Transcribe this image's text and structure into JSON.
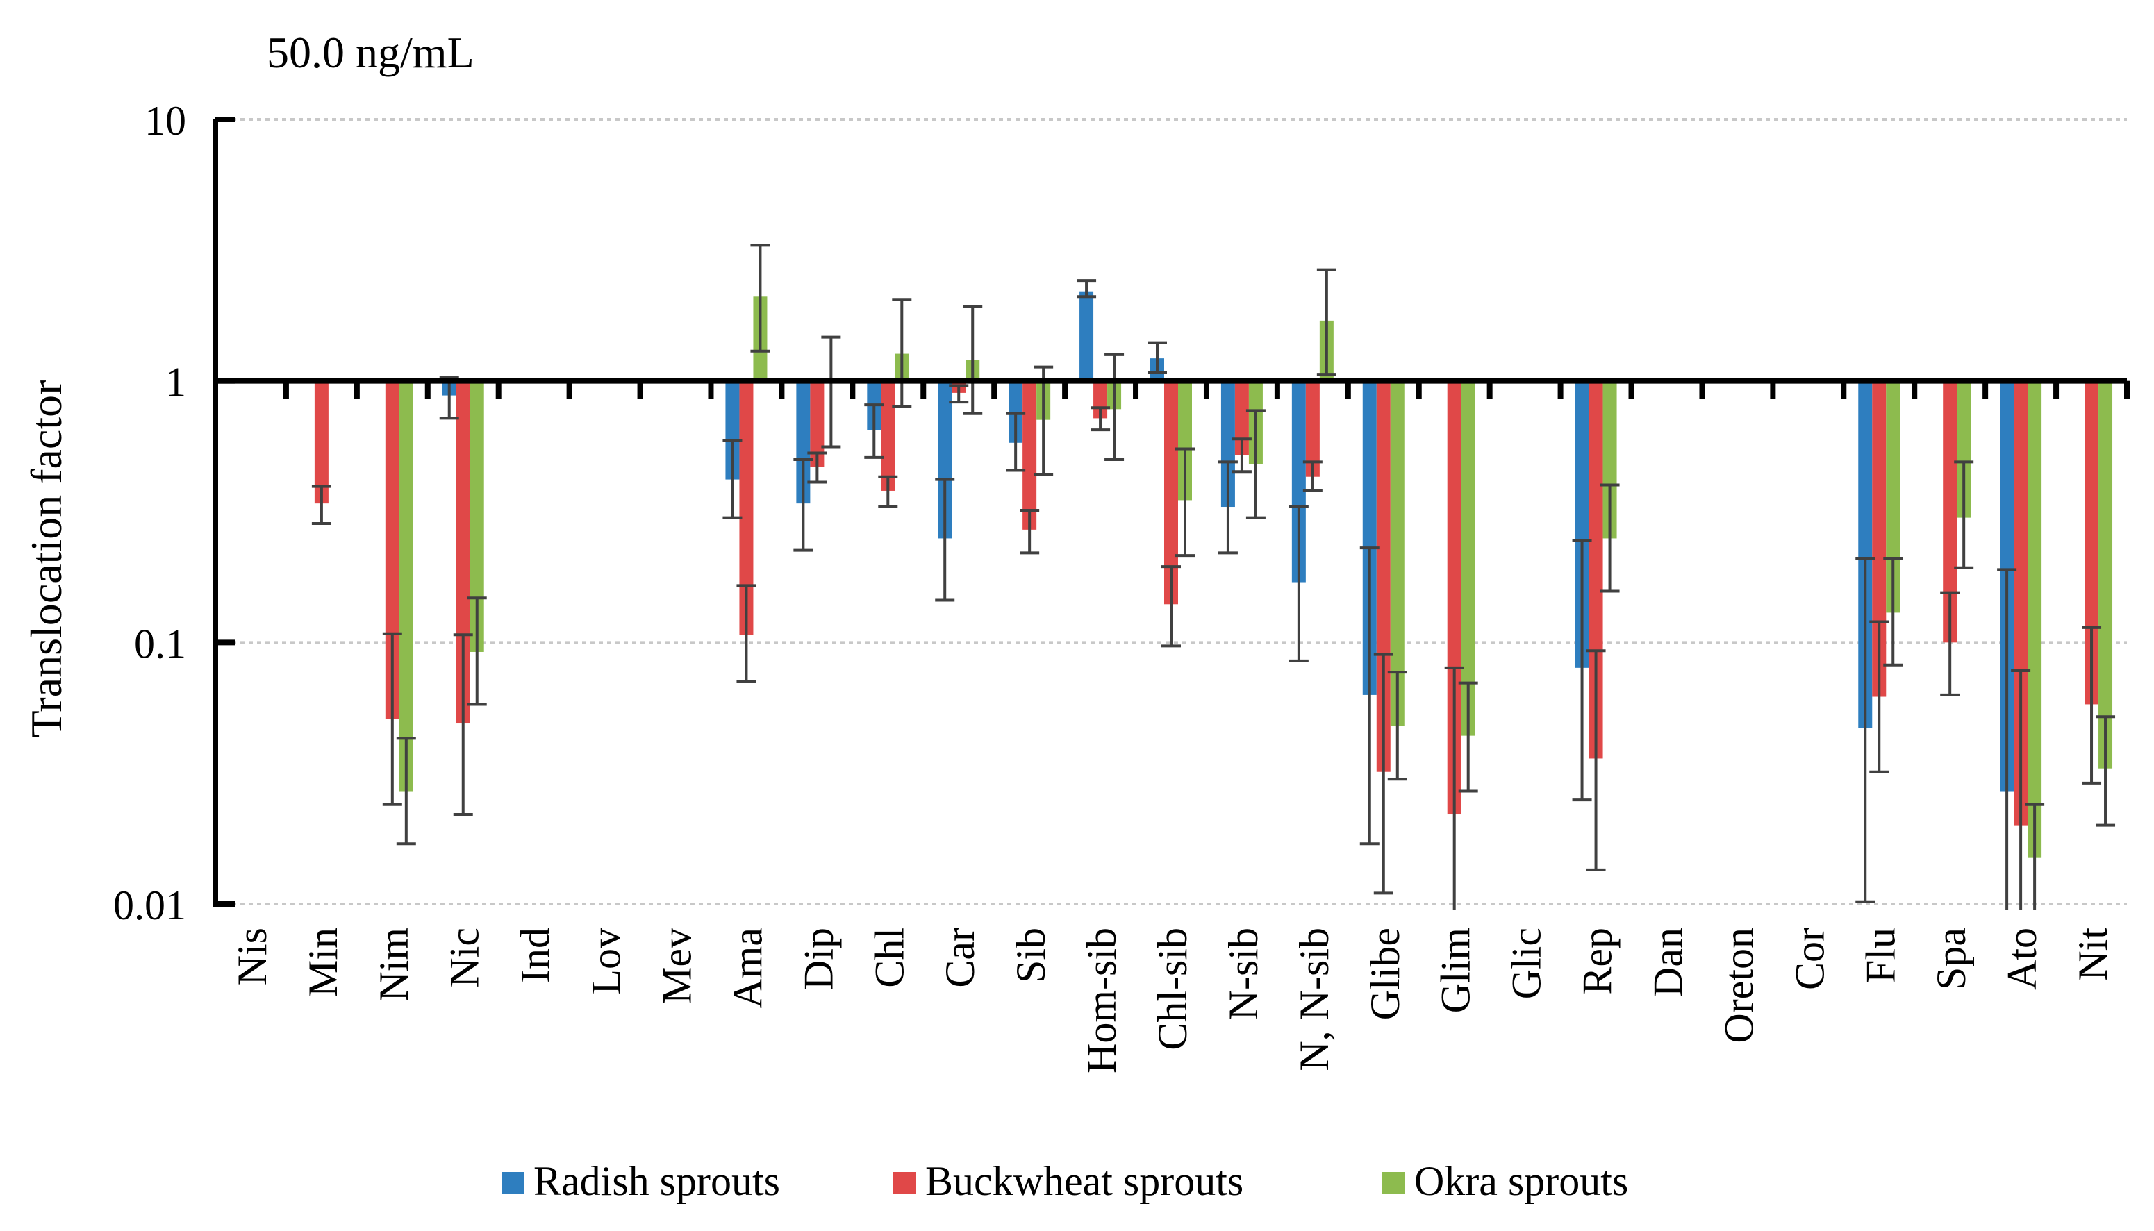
{
  "chart_data": {
    "type": "bar",
    "title": "50.0 ng/mL",
    "ylabel": "Translocation factor",
    "xlabel": "",
    "yscale": "log",
    "ylim": [
      0.01,
      10
    ],
    "baseline": 1,
    "yticks": [
      "10",
      "1",
      "0.1",
      "0.01"
    ],
    "grid": true,
    "legend_position": "bottom",
    "categories": [
      "Nis",
      "Min",
      "Nim",
      "Nic",
      "Ind",
      "Lov",
      "Mev",
      "Ama",
      "Dip",
      "Chl",
      "Car",
      "Sib",
      "Hom-sib",
      "Chl-sib",
      "N-sib",
      "N, N-sib",
      "Glibe",
      "Glim",
      "Glic",
      "Rep",
      "Dan",
      "Oreton",
      "Cor",
      "Flu",
      "Spa",
      "Ato",
      "Nit"
    ],
    "series": [
      {
        "name": "Radish sprouts",
        "color": "#2e7ebf",
        "values": [
          null,
          null,
          null,
          0.88,
          null,
          null,
          null,
          0.42,
          0.34,
          0.65,
          0.25,
          0.58,
          2.2,
          1.22,
          0.33,
          0.17,
          0.063,
          null,
          null,
          0.08,
          null,
          null,
          null,
          0.047,
          null,
          0.027,
          null
        ],
        "err_low": [
          null,
          null,
          null,
          0.72,
          null,
          null,
          null,
          0.3,
          0.225,
          0.51,
          0.145,
          0.455,
          2.1,
          1.08,
          0.22,
          0.085,
          0.017,
          null,
          null,
          0.025,
          null,
          null,
          null,
          0.0102,
          null,
          0.0095,
          null
        ],
        "err_high": [
          null,
          null,
          null,
          1.03,
          null,
          null,
          null,
          0.59,
          0.5,
          0.81,
          0.42,
          0.75,
          2.42,
          1.4,
          0.49,
          0.33,
          0.23,
          null,
          null,
          0.245,
          null,
          null,
          null,
          0.21,
          null,
          0.19,
          null
        ]
      },
      {
        "name": "Buckwheat sprouts",
        "color": "#e04848",
        "values": [
          null,
          0.34,
          0.051,
          0.049,
          null,
          null,
          null,
          0.107,
          0.47,
          0.38,
          0.9,
          0.27,
          0.72,
          0.14,
          0.52,
          0.43,
          0.032,
          0.022,
          null,
          0.036,
          null,
          null,
          null,
          0.062,
          0.1,
          0.02,
          0.058
        ],
        "err_low": [
          null,
          0.285,
          0.024,
          0.022,
          null,
          null,
          null,
          0.071,
          0.41,
          0.33,
          0.83,
          0.22,
          0.65,
          0.097,
          0.45,
          0.38,
          0.011,
          0.0095,
          null,
          0.0135,
          null,
          null,
          null,
          0.032,
          0.063,
          0.0095,
          0.029
        ],
        "err_high": [
          null,
          0.395,
          0.108,
          0.107,
          null,
          null,
          null,
          0.165,
          0.53,
          0.43,
          0.96,
          0.32,
          0.79,
          0.195,
          0.6,
          0.49,
          0.09,
          0.08,
          null,
          0.093,
          null,
          null,
          null,
          0.12,
          0.155,
          0.078,
          0.114
        ]
      },
      {
        "name": "Okra sprouts",
        "color": "#8dbb4e",
        "values": [
          null,
          null,
          0.027,
          0.092,
          null,
          null,
          null,
          2.1,
          0.98,
          1.27,
          1.2,
          0.71,
          0.78,
          0.35,
          0.48,
          1.7,
          0.048,
          0.044,
          null,
          0.25,
          null,
          null,
          null,
          0.13,
          0.3,
          0.015,
          0.033
        ],
        "err_low": [
          null,
          null,
          0.017,
          0.058,
          null,
          null,
          null,
          1.3,
          0.56,
          0.8,
          0.75,
          0.44,
          0.5,
          0.215,
          0.3,
          1.06,
          0.03,
          0.027,
          null,
          0.157,
          null,
          null,
          null,
          0.082,
          0.193,
          0.0095,
          0.02
        ],
        "err_high": [
          null,
          null,
          0.043,
          0.148,
          null,
          null,
          null,
          3.3,
          1.47,
          2.05,
          1.92,
          1.13,
          1.26,
          0.55,
          0.77,
          2.66,
          0.077,
          0.07,
          null,
          0.4,
          null,
          null,
          null,
          0.21,
          0.49,
          0.024,
          0.052
        ]
      }
    ]
  }
}
